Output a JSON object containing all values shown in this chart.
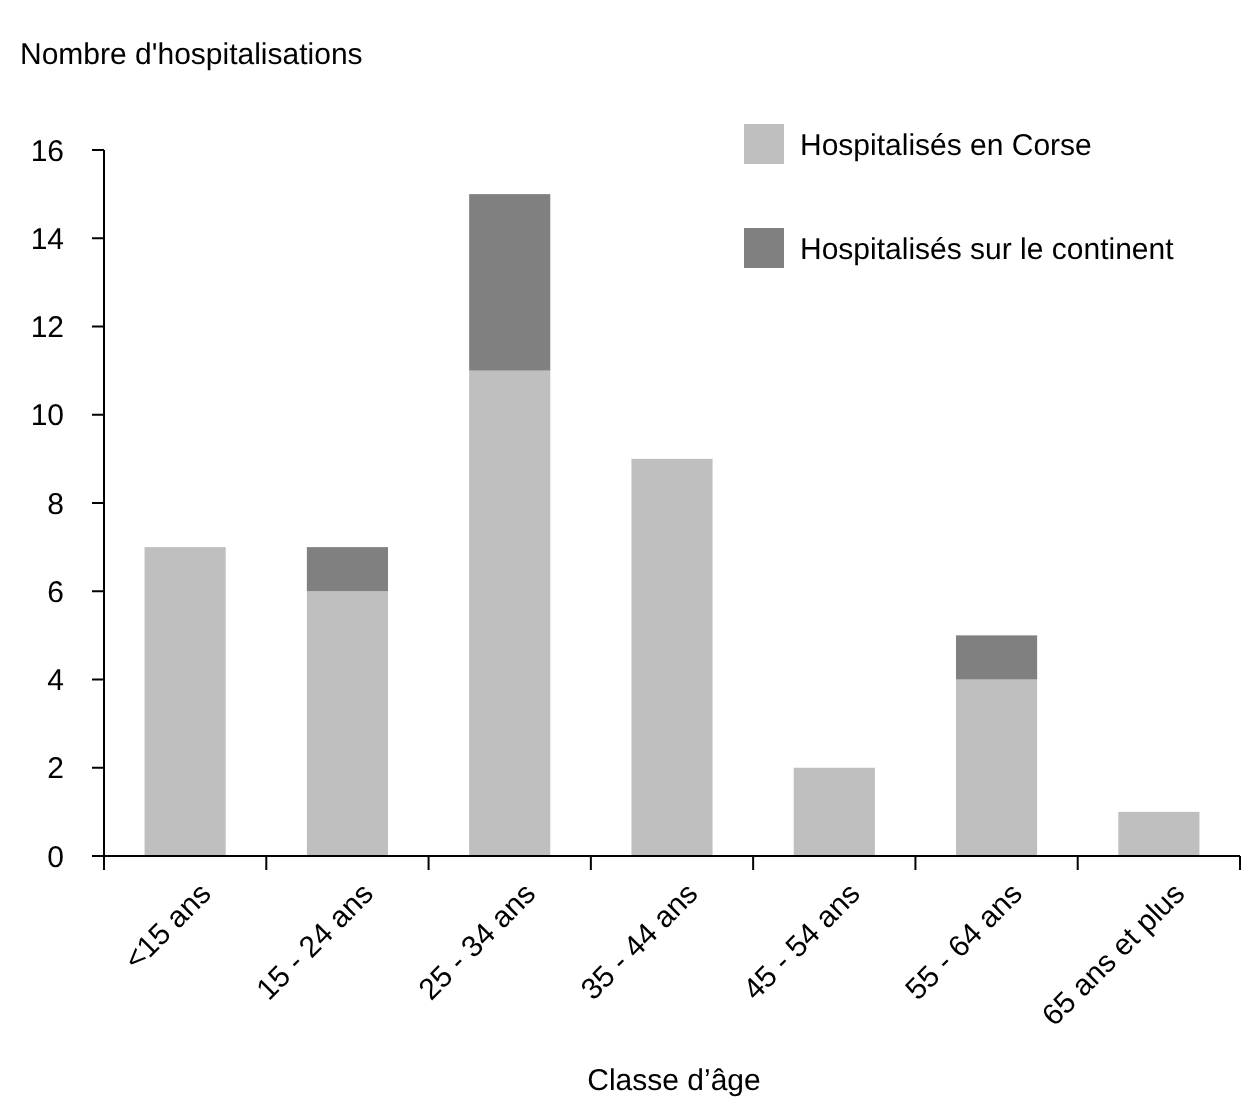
{
  "chart_data": {
    "type": "bar",
    "ylabel": "Nombre d'hospitalisations",
    "xlabel": "Classe d’âge",
    "categories": [
      "<15 ans",
      "15 - 24 ans",
      "25 - 34 ans",
      "35 - 44 ans",
      "45 - 54 ans",
      "55 - 64 ans",
      "65 ans et plus"
    ],
    "series": [
      {
        "name": "Hospitalisés en Corse",
        "color": "#bfbfbf",
        "values": [
          7,
          6,
          11,
          9,
          2,
          4,
          1
        ]
      },
      {
        "name": "Hospitalisés sur le continent",
        "color": "#808080",
        "values": [
          0,
          1,
          4,
          0,
          0,
          1,
          0
        ]
      }
    ],
    "stacked": true,
    "ylim": [
      0,
      16
    ],
    "yticks": [
      0,
      2,
      4,
      6,
      8,
      10,
      12,
      14,
      16
    ],
    "legend": "top right",
    "grid": false
  }
}
